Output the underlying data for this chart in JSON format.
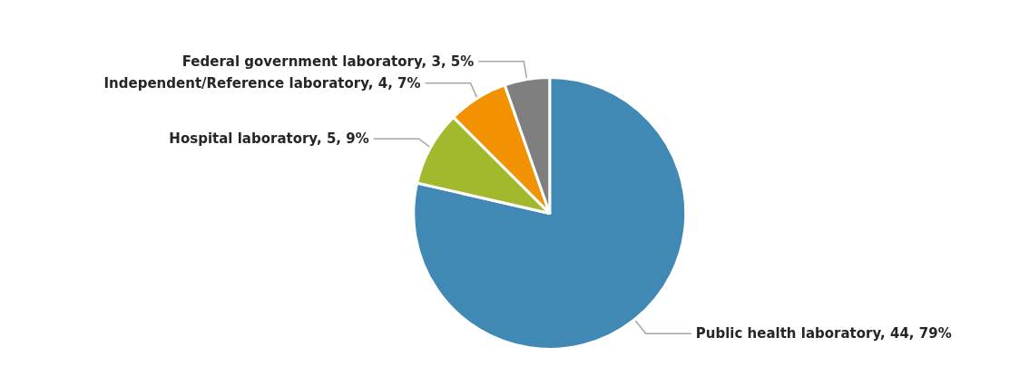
{
  "chart_data": {
    "type": "pie",
    "categories": [
      "Public health laboratory",
      "Hospital laboratory",
      "Independent/Reference laboratory",
      "Federal government laboratory"
    ],
    "values": [
      44,
      5,
      4,
      3
    ],
    "value_labels": [
      "44, 79%",
      "5, 9%",
      "4, 7%",
      "3, 5%"
    ],
    "colors": [
      "#4189b5",
      "#a2b92d",
      "#f39200",
      "#7f7f7f"
    ],
    "legend": false
  }
}
